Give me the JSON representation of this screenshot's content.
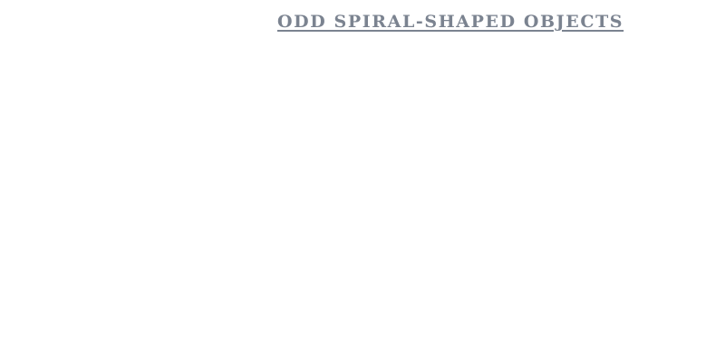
{
  "heading": {
    "text": "ODD SPIRAL-SHAPED OBJECTS",
    "color": "#7b8390"
  },
  "background_color": "#ffffff"
}
